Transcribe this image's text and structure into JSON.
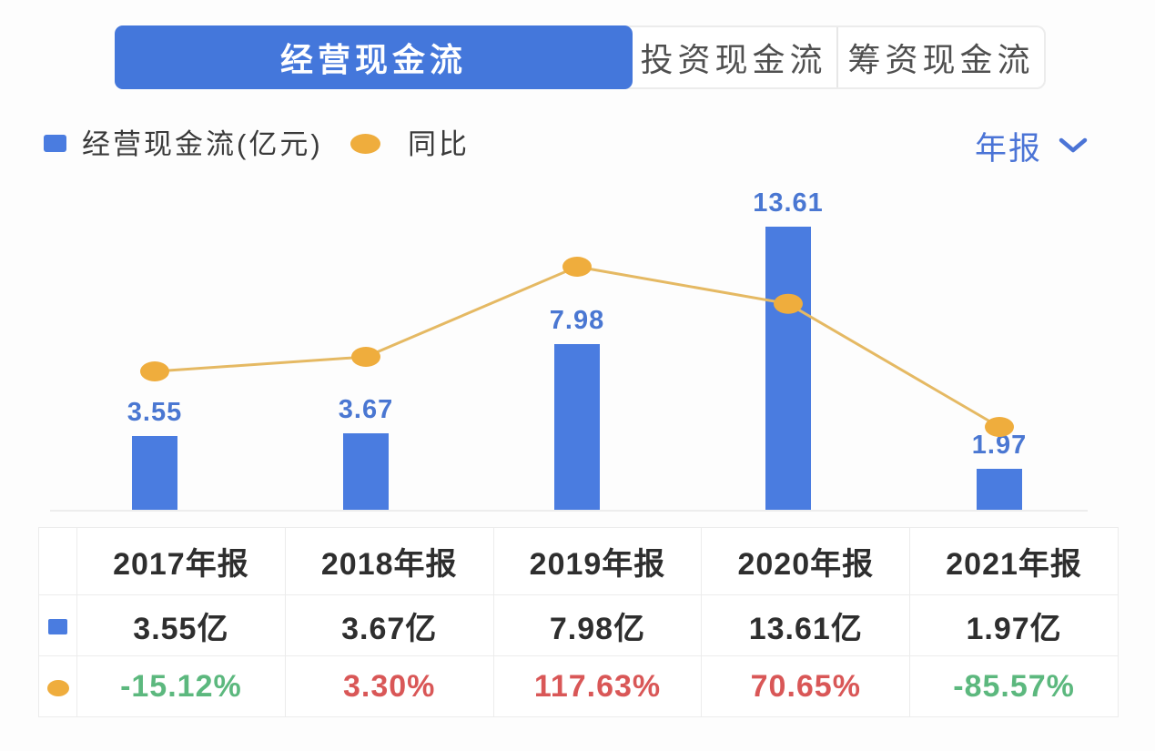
{
  "tabs": [
    {
      "label": "经营现金流",
      "active": true
    },
    {
      "label": "投资现金流",
      "active": false
    },
    {
      "label": "筹资现金流",
      "active": false
    }
  ],
  "legend": {
    "bar_series_label": "经营现金流(亿元)",
    "line_series_label": "同比"
  },
  "period_selector": {
    "value": "年报",
    "icon": "chevron-down-icon"
  },
  "chart_data": {
    "type": "bar",
    "categories": [
      "2017年报",
      "2018年报",
      "2019年报",
      "2020年报",
      "2021年报"
    ],
    "series": [
      {
        "name": "经营现金流(亿元)",
        "type": "bar",
        "unit": "亿元",
        "values": [
          3.55,
          3.67,
          7.98,
          13.61,
          1.97
        ],
        "data_labels": [
          "3.55",
          "3.67",
          "7.98",
          "13.61",
          "1.97"
        ],
        "color": "#4a7ce0"
      },
      {
        "name": "同比",
        "type": "line",
        "unit": "%",
        "values": [
          -15.12,
          3.3,
          117.63,
          70.65,
          -85.57
        ],
        "color": "#efad3d",
        "line_color": "#e5b963"
      }
    ],
    "title": "",
    "xlabel": "",
    "ylabel": "",
    "grid": false,
    "x_axis_tick_labels_shown": false,
    "legend_position": "top-left"
  },
  "table": {
    "column_headers": [
      "2017年报",
      "2018年报",
      "2019年报",
      "2020年报",
      "2021年报"
    ],
    "rows": [
      {
        "icon": "bar-series-swatch",
        "icon_color": "#4a7ce0",
        "values": [
          "3.55亿",
          "3.67亿",
          "7.98亿",
          "13.61亿",
          "1.97亿"
        ],
        "value_colors": [
          "#2e2e2e",
          "#2e2e2e",
          "#2e2e2e",
          "#2e2e2e",
          "#2e2e2e"
        ]
      },
      {
        "icon": "line-series-swatch",
        "icon_color": "#efad3d",
        "values": [
          "-15.12%",
          "3.30%",
          "117.63%",
          "70.65%",
          "-85.57%"
        ],
        "value_colors": [
          "#5cb87e",
          "#d95757",
          "#d95757",
          "#d95757",
          "#5cb87e"
        ]
      }
    ]
  },
  "colors": {
    "active_tab_blue": "#4477db",
    "bar_blue": "#4a7ce0",
    "point_gold": "#efad3d",
    "line_gold": "#e5b963",
    "value_label_blue": "#4a77d2",
    "link_blue": "#4b74d6",
    "positive_red": "#d95757",
    "negative_green": "#5cb87e"
  }
}
